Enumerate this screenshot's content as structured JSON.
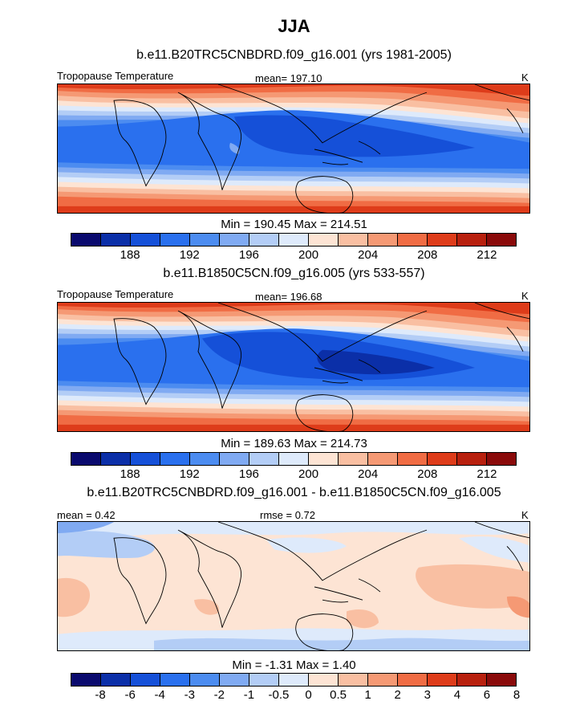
{
  "chart_data": [
    {
      "type": "heatmap",
      "season": "JJA",
      "title": "b.e11.B20TRC5CNBDRD.f09_g16.001 (yrs 1981-2005)",
      "left_label": "Tropopause Temperature",
      "center_label": "mean= 197.10",
      "units": "K",
      "min": 190.45,
      "max": 214.51,
      "minmax_text": "Min = 190.45 Max = 214.51",
      "colorbar_ticks": [
        "188",
        "192",
        "196",
        "200",
        "204",
        "208",
        "212"
      ],
      "colorbar_levels": [
        186,
        188,
        190,
        192,
        194,
        196,
        198,
        200,
        202,
        204,
        206,
        208,
        210,
        212,
        214
      ]
    },
    {
      "type": "heatmap",
      "title": "b.e11.B1850C5CN.f09_g16.005 (yrs 533-557)",
      "left_label": "Tropopause Temperature",
      "center_label": "mean= 196.68",
      "units": "K",
      "min": 189.63,
      "max": 214.73,
      "minmax_text": "Min = 189.63 Max = 214.73",
      "colorbar_ticks": [
        "188",
        "192",
        "196",
        "200",
        "204",
        "208",
        "212"
      ],
      "colorbar_levels": [
        186,
        188,
        190,
        192,
        194,
        196,
        198,
        200,
        202,
        204,
        206,
        208,
        210,
        212,
        214
      ]
    },
    {
      "type": "heatmap",
      "title": "b.e11.B20TRC5CNBDRD.f09_g16.001 - b.e11.B1850C5CN.f09_g16.005",
      "left_label": "mean =   0.42",
      "center_label": "rmse =   0.72",
      "units": "K",
      "min": -1.31,
      "max": 1.4,
      "minmax_text": "Min =  -1.31 Max =   1.40",
      "colorbar_ticks": [
        "-8",
        "-6",
        "-4",
        "-3",
        "-2",
        "-1",
        "-0.5",
        "0",
        "0.5",
        "1",
        "2",
        "3",
        "4",
        "6",
        "8"
      ],
      "colorbar_levels": [
        -8,
        -6,
        -4,
        -3,
        -2,
        -1,
        -0.5,
        0,
        0.5,
        1,
        2,
        3,
        4,
        6,
        8
      ]
    }
  ],
  "colors": [
    "#0a0a6e",
    "#0b2fa8",
    "#1550d8",
    "#2a70ee",
    "#4c8cf0",
    "#80aaf2",
    "#b3cdf6",
    "#deeafb",
    "#fde4d4",
    "#f9bfa2",
    "#f59974",
    "#f06c44",
    "#de3c1a",
    "#b8200e",
    "#8a0a0a"
  ]
}
